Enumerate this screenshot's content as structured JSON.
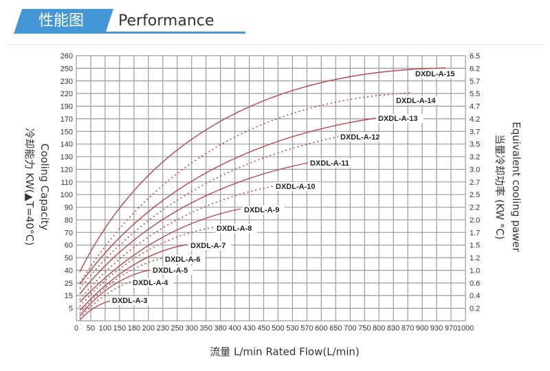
{
  "header": {
    "title_cn": "性能图",
    "title_en": "Performance",
    "accent_color": "#4496d6"
  },
  "chart_data": {
    "type": "line",
    "title": "Performance",
    "xlabel": "流量 L/min  Rated Flow(L/min)",
    "ylabel": "冷却能力 KW(▲T=40°C)  Cooling Capacity",
    "y2label": "当量冷却功率 (KW °C)  Equivalent cooling pawer",
    "x_ticks": [
      "0",
      "50",
      "100",
      "150",
      "180",
      "200",
      "230",
      "250",
      "300",
      "350",
      "380",
      "400",
      "430",
      "450",
      "500",
      "530",
      "570",
      "600",
      "650",
      "700",
      "750",
      "800",
      "830",
      "870",
      "900",
      "930",
      "970",
      "1000"
    ],
    "y_ticks": [
      "260",
      "250",
      "230",
      "220",
      "190",
      "170",
      "150",
      "140",
      "130",
      "120",
      "110",
      "100",
      "90",
      "80",
      "70",
      "60",
      "50",
      "40",
      "25",
      "15",
      "5"
    ],
    "y2_ticks": [
      "6.5",
      "6.2",
      "5.7",
      "5.5",
      "4.7",
      "4.2",
      "3.7",
      "3.5",
      "3.2",
      "3.0",
      "2.7",
      "2.5",
      "2.2",
      "2.0",
      "1.7",
      "1.5",
      "1.2",
      "1.0",
      "0.6",
      "0.4",
      "0.2"
    ],
    "grid": true,
    "line_color": "#b5474b",
    "series": [
      {
        "name": "DXDL-A-3",
        "style": "solid",
        "x_end": 100,
        "y_end": 15
      },
      {
        "name": "DXDL-A-4",
        "style": "dotted",
        "x_end": 180,
        "y_end": 30
      },
      {
        "name": "DXDL-A-5",
        "style": "solid",
        "x_end": 230,
        "y_end": 45
      },
      {
        "name": "DXDL-A-6",
        "style": "dotted",
        "x_end": 250,
        "y_end": 55
      },
      {
        "name": "DXDL-A-7",
        "style": "solid",
        "x_end": 350,
        "y_end": 65
      },
      {
        "name": "DXDL-A-8",
        "style": "dotted",
        "x_end": 430,
        "y_end": 75
      },
      {
        "name": "DXDL-A-9",
        "style": "solid",
        "x_end": 530,
        "y_end": 85
      },
      {
        "name": "DXDL-A-10",
        "style": "dotted",
        "x_end": 650,
        "y_end": 105
      },
      {
        "name": "DXDL-A-11",
        "style": "solid",
        "x_end": 750,
        "y_end": 125
      },
      {
        "name": "DXDL-A-12",
        "style": "dotted",
        "x_end": 830,
        "y_end": 145
      },
      {
        "name": "DXDL-A-13",
        "style": "solid",
        "x_end": 900,
        "y_end": 170
      },
      {
        "name": "DXDL-A-14",
        "style": "dotted",
        "x_end": 930,
        "y_end": 215
      },
      {
        "name": "DXDL-A-15",
        "style": "solid",
        "x_end": 1000,
        "y_end": 248
      }
    ]
  }
}
